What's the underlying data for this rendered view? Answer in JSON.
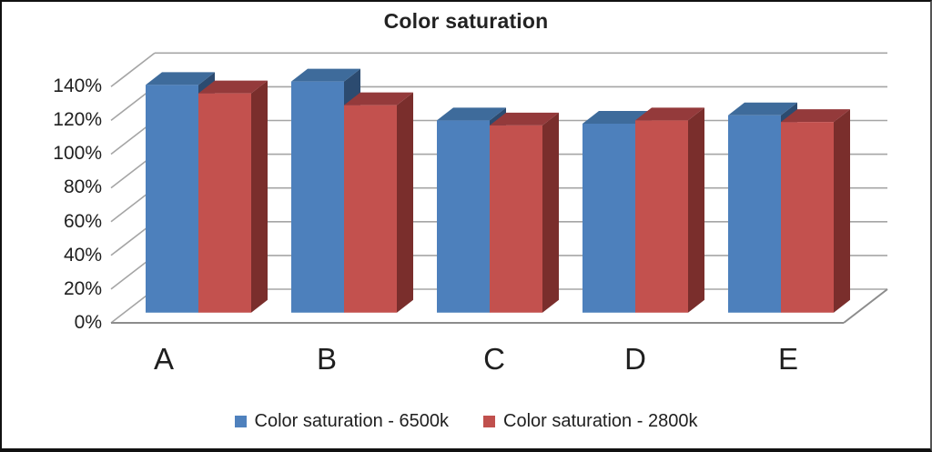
{
  "chart_data": {
    "type": "bar",
    "variant": "3d-clustered-column",
    "title": "Color saturation",
    "categories": [
      "A",
      "B",
      "C",
      "D",
      "E"
    ],
    "series": [
      {
        "name": "Color saturation - 6500k",
        "color": "#4F81BD",
        "faces": {
          "front": "#4D80BC",
          "top": "#3E6B9B",
          "side": "#2C4B70"
        },
        "values": [
          135,
          137,
          114,
          112,
          117
        ]
      },
      {
        "name": "Color saturation - 2800k",
        "color": "#C0504D",
        "faces": {
          "front": "#C3514E",
          "top": "#943A3B",
          "side": "#7A2E2C"
        },
        "values": [
          130,
          123,
          111,
          114,
          113
        ]
      }
    ],
    "xlabel": "",
    "ylabel": "",
    "ylim": [
      0,
      140
    ],
    "ytick_step": 20,
    "yticks": [
      "0%",
      "20%",
      "40%",
      "60%",
      "80%",
      "100%",
      "120%",
      "140%"
    ],
    "grid": true,
    "legend_position": "bottom"
  }
}
